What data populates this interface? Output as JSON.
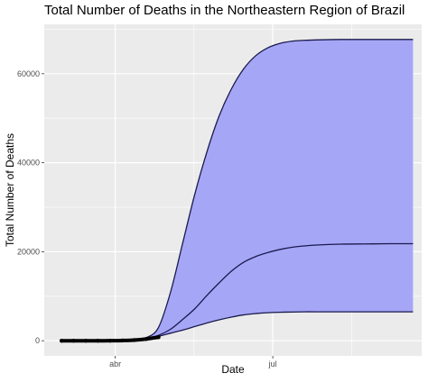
{
  "chart_data": {
    "type": "area",
    "title": "Total Number of Deaths in the Northeastern Region of Brazil",
    "xlabel": "Date",
    "ylabel": "Total Number of Deaths",
    "x_ticks": [
      {
        "label": "abr",
        "date": "2020-04-01"
      },
      {
        "label": "jul",
        "date": "2020-07-01"
      }
    ],
    "y_ticks": [
      0,
      20000,
      40000,
      60000
    ],
    "xlim": [
      "2020-02-20",
      "2020-09-25"
    ],
    "ylim": [
      -3400,
      71100
    ],
    "grid": true,
    "legend": "none",
    "fill_color": "#a6a6f7",
    "line_color": "#1a1a4d",
    "background_color": "#ebebeb",
    "grid_color": "#ffffff",
    "observed": {
      "x": [
        "2020-03-01",
        "2020-03-08",
        "2020-03-15",
        "2020-03-22",
        "2020-03-29",
        "2020-04-05",
        "2020-04-12",
        "2020-04-19",
        "2020-04-26"
      ],
      "y": [
        0,
        0,
        0,
        0,
        10,
        50,
        150,
        400,
        800
      ]
    },
    "series": [
      {
        "x": [
          "2020-03-01",
          "2020-03-15",
          "2020-03-29",
          "2020-04-05",
          "2020-04-12",
          "2020-04-19",
          "2020-04-26",
          "2020-05-03",
          "2020-05-10",
          "2020-05-17",
          "2020-05-24",
          "2020-05-31",
          "2020-06-07",
          "2020-06-14",
          "2020-06-21",
          "2020-06-28",
          "2020-07-05",
          "2020-07-12",
          "2020-07-19",
          "2020-07-26",
          "2020-08-09",
          "2020-08-23",
          "2020-09-06",
          "2020-09-20"
        ],
        "y": [
          0,
          0,
          0,
          50,
          200,
          500,
          1200,
          2600,
          4800,
          7200,
          10200,
          13000,
          15600,
          17600,
          18900,
          19800,
          20500,
          21000,
          21300,
          21500,
          21700,
          21750,
          21800,
          21800
        ]
      },
      {
        "x": [
          "2020-03-01",
          "2020-03-15",
          "2020-03-29",
          "2020-04-05",
          "2020-04-12",
          "2020-04-19",
          "2020-04-26",
          "2020-05-03",
          "2020-05-10",
          "2020-05-17",
          "2020-05-24",
          "2020-05-31",
          "2020-06-07",
          "2020-06-14",
          "2020-06-21",
          "2020-06-28",
          "2020-07-05",
          "2020-07-12",
          "2020-07-19",
          "2020-07-26",
          "2020-08-09",
          "2020-08-23",
          "2020-09-06",
          "2020-09-20"
        ],
        "y": [
          0,
          0,
          0,
          50,
          200,
          500,
          1000,
          1700,
          2400,
          3200,
          4000,
          4700,
          5300,
          5800,
          6100,
          6300,
          6400,
          6450,
          6500,
          6500,
          6500,
          6500,
          6500,
          6500
        ]
      },
      {
        "x": [
          "2020-03-01",
          "2020-03-15",
          "2020-03-29",
          "2020-04-05",
          "2020-04-12",
          "2020-04-19",
          "2020-04-26",
          "2020-05-03",
          "2020-05-10",
          "2020-05-17",
          "2020-05-24",
          "2020-05-31",
          "2020-06-07",
          "2020-06-14",
          "2020-06-21",
          "2020-06-28",
          "2020-07-05",
          "2020-07-12",
          "2020-07-19",
          "2020-07-26",
          "2020-08-09",
          "2020-08-23",
          "2020-09-06",
          "2020-09-20"
        ],
        "y": [
          0,
          0,
          0,
          50,
          200,
          700,
          3000,
          11000,
          22000,
          33000,
          42500,
          50500,
          56500,
          61000,
          64000,
          65800,
          66800,
          67300,
          67500,
          67600,
          67700,
          67700,
          67700,
          67700
        ]
      }
    ]
  }
}
